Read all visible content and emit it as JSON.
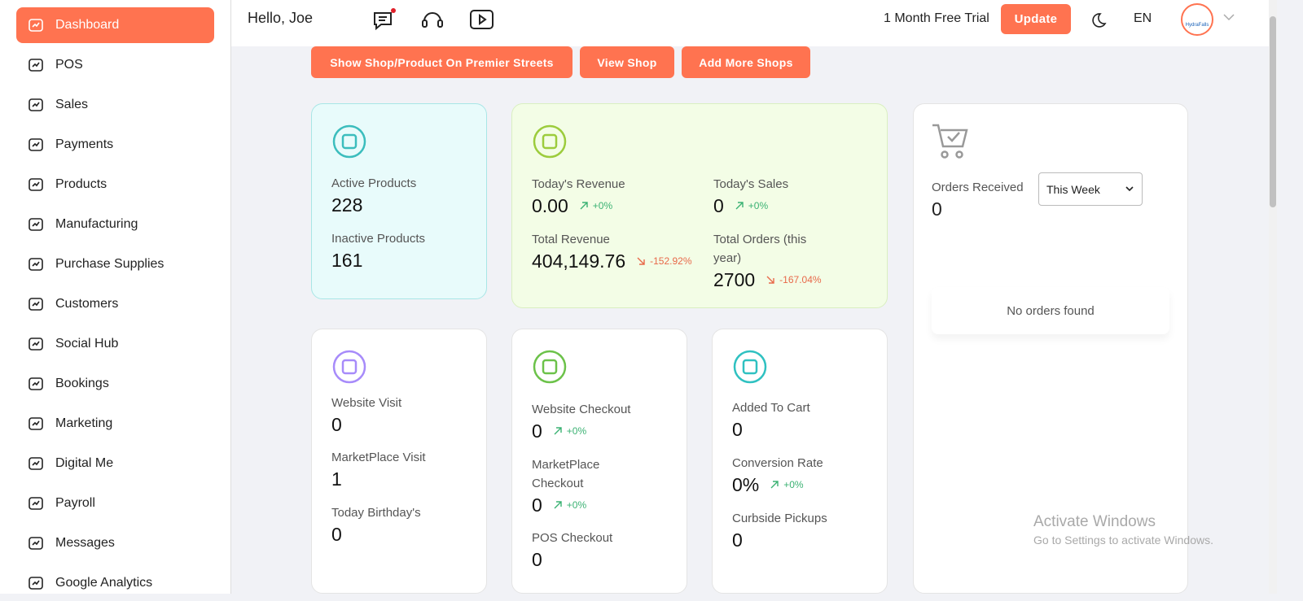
{
  "sidebar": {
    "items": [
      "Dashboard",
      "POS",
      "Sales",
      "Payments",
      "Products",
      "Manufacturing",
      "Purchase Supplies",
      "Customers",
      "Social Hub",
      "Bookings",
      "Marketing",
      "Digital Me",
      "Payroll",
      "Messages",
      "Google Analytics"
    ]
  },
  "header": {
    "greeting": "Hello, Joe",
    "trial": "1 Month Free Trial",
    "update": "Update",
    "language": "EN",
    "avatar": "HydraFalls"
  },
  "actions": [
    "Show Shop/Product On Premier Streets",
    "View Shop",
    "Add More Shops"
  ],
  "cards": [
    {
      "stats": [
        {
          "label": "Active Products",
          "value": "228"
        },
        {
          "label": "Inactive Products",
          "value": "161"
        }
      ]
    },
    {
      "stats": [
        {
          "label": "Today's Revenue",
          "value": "0.00",
          "change": "+0%"
        },
        {
          "label": "Today's Sales",
          "value": "0",
          "change": "+0%"
        },
        {
          "label": "Total Revenue",
          "value": "404,149.76",
          "change": "-152.92%"
        },
        {
          "label": "Total Orders (this year)",
          "value": "2700",
          "change": "-167.04%"
        }
      ]
    },
    {
      "stats": [
        {
          "label": "Website Visit",
          "value": "0"
        },
        {
          "label": "MarketPlace Visit",
          "value": "1"
        },
        {
          "label": "Today Birthday's",
          "value": "0"
        }
      ]
    },
    {
      "stats": [
        {
          "label": "Website Checkout",
          "value": "0",
          "change": "+0%"
        },
        {
          "label": "MarketPlace Checkout",
          "value": "0",
          "change": "+0%"
        },
        {
          "label": "POS Checkout",
          "value": "0"
        }
      ]
    },
    {
      "stats": [
        {
          "label": "Added To Cart",
          "value": "0"
        },
        {
          "label": "Conversion Rate",
          "value": "0%",
          "change": "+0%"
        },
        {
          "label": "Curbside Pickups",
          "value": "0"
        }
      ]
    }
  ],
  "orders": {
    "label": "Orders Received",
    "value": "0",
    "period": "This Week",
    "empty": "No orders found"
  },
  "watermark": {
    "title": "Activate Windows",
    "subtitle": "Go to Settings to activate Windows."
  }
}
